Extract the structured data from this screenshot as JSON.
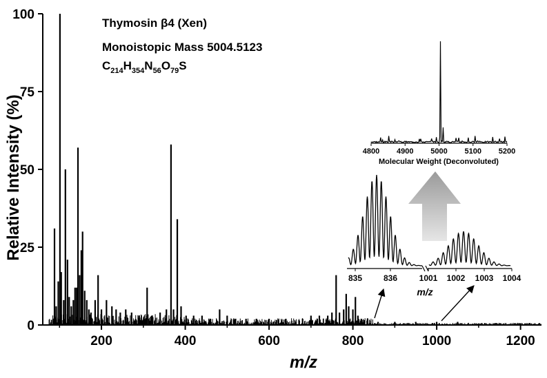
{
  "chart_data": {
    "type": "bar",
    "xlabel": "m/z",
    "ylabel": "Relative Intensity (%)",
    "xlim": [
      60,
      1250
    ],
    "ylim": [
      0,
      100
    ],
    "xticks": [
      200,
      400,
      600,
      800,
      1000,
      1200
    ],
    "yticks": [
      0,
      25,
      50,
      75,
      100
    ],
    "series": [
      {
        "peaks": [
          {
            "x": 88,
            "y": 31
          },
          {
            "x": 92,
            "y": 6
          },
          {
            "x": 97,
            "y": 14
          },
          {
            "x": 101,
            "y": 100
          },
          {
            "x": 104,
            "y": 17
          },
          {
            "x": 110,
            "y": 8
          },
          {
            "x": 114,
            "y": 50
          },
          {
            "x": 119,
            "y": 21
          },
          {
            "x": 123,
            "y": 9
          },
          {
            "x": 128,
            "y": 6
          },
          {
            "x": 133,
            "y": 8
          },
          {
            "x": 137,
            "y": 12
          },
          {
            "x": 141,
            "y": 12
          },
          {
            "x": 144,
            "y": 57
          },
          {
            "x": 148,
            "y": 16
          },
          {
            "x": 152,
            "y": 24
          },
          {
            "x": 155,
            "y": 30
          },
          {
            "x": 160,
            "y": 11
          },
          {
            "x": 165,
            "y": 8
          },
          {
            "x": 170,
            "y": 5
          },
          {
            "x": 175,
            "y": 4
          },
          {
            "x": 185,
            "y": 8
          },
          {
            "x": 192,
            "y": 16
          },
          {
            "x": 200,
            "y": 5
          },
          {
            "x": 212,
            "y": 8
          },
          {
            "x": 225,
            "y": 6
          },
          {
            "x": 235,
            "y": 5
          },
          {
            "x": 245,
            "y": 4
          },
          {
            "x": 258,
            "y": 5
          },
          {
            "x": 272,
            "y": 4
          },
          {
            "x": 290,
            "y": 3
          },
          {
            "x": 309,
            "y": 12
          },
          {
            "x": 320,
            "y": 3
          },
          {
            "x": 340,
            "y": 4
          },
          {
            "x": 355,
            "y": 5
          },
          {
            "x": 366,
            "y": 58
          },
          {
            "x": 372,
            "y": 5
          },
          {
            "x": 381,
            "y": 34
          },
          {
            "x": 390,
            "y": 6
          },
          {
            "x": 402,
            "y": 3
          },
          {
            "x": 420,
            "y": 3
          },
          {
            "x": 440,
            "y": 3
          },
          {
            "x": 460,
            "y": 2
          },
          {
            "x": 482,
            "y": 5
          },
          {
            "x": 500,
            "y": 3
          },
          {
            "x": 520,
            "y": 2
          },
          {
            "x": 545,
            "y": 2
          },
          {
            "x": 570,
            "y": 2
          },
          {
            "x": 600,
            "y": 2
          },
          {
            "x": 640,
            "y": 2
          },
          {
            "x": 680,
            "y": 2
          },
          {
            "x": 700,
            "y": 3
          },
          {
            "x": 720,
            "y": 3
          },
          {
            "x": 740,
            "y": 3
          },
          {
            "x": 750,
            "y": 4
          },
          {
            "x": 760,
            "y": 16
          },
          {
            "x": 768,
            "y": 4
          },
          {
            "x": 778,
            "y": 5
          },
          {
            "x": 784,
            "y": 10
          },
          {
            "x": 790,
            "y": 6
          },
          {
            "x": 800,
            "y": 5
          },
          {
            "x": 806,
            "y": 9
          },
          {
            "x": 812,
            "y": 3
          },
          {
            "x": 820,
            "y": 2
          },
          {
            "x": 835,
            "y": 2
          },
          {
            "x": 860,
            "y": 1
          },
          {
            "x": 900,
            "y": 1
          },
          {
            "x": 950,
            "y": 1
          },
          {
            "x": 1000,
            "y": 1
          },
          {
            "x": 1050,
            "y": 1
          },
          {
            "x": 1100,
            "y": 0.5
          },
          {
            "x": 1150,
            "y": 0.5
          },
          {
            "x": 1200,
            "y": 0.5
          }
        ]
      }
    ],
    "annotations": {
      "title": "Thymosin β4 (Xen)",
      "mass": "Monoistopic Mass 5004.5123",
      "formula": [
        {
          "text": "C",
          "sub": "214"
        },
        {
          "text": "H",
          "sub": "354"
        },
        {
          "text": "N",
          "sub": "56"
        },
        {
          "text": "O",
          "sub": "79"
        },
        {
          "text": "S",
          "sub": ""
        }
      ]
    },
    "insets": [
      {
        "type": "line",
        "xlabel": "Molecular Weight (Deconvoluted)",
        "xlim": [
          4800,
          5200
        ],
        "xticks": [
          4800,
          4900,
          5000,
          5100,
          5200
        ],
        "peak": {
          "x": 5004,
          "y": 100
        }
      },
      {
        "type": "line",
        "xlabel": "m/z",
        "panels": [
          {
            "xticks": [
              "835",
              "836"
            ]
          },
          {
            "xticks": [
              "1001",
              "1002",
              "1003",
              "1004"
            ]
          }
        ]
      }
    ]
  }
}
